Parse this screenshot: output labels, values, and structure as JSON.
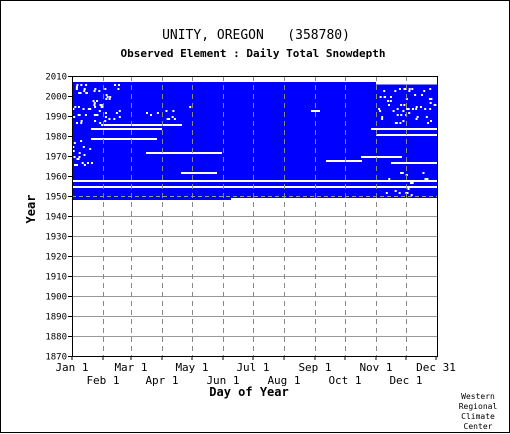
{
  "chart_data": {
    "type": "heatmap",
    "title": "UNITY, OREGON   (358780)",
    "subtitle": "Observed Element : Daily Total Snowdepth",
    "xlabel": "Day of Year",
    "ylabel": "Year",
    "credit": [
      "Western",
      "Regional",
      "Climate",
      "Center"
    ],
    "ylim": [
      1870,
      2010
    ],
    "xlim": [
      1,
      366
    ],
    "y_ticks": [
      2010,
      2000,
      1990,
      1980,
      1970,
      1960,
      1950,
      1940,
      1930,
      1920,
      1910,
      1900,
      1890,
      1880,
      1870
    ],
    "x_ticks_top": [
      {
        "label": "Jan 1",
        "day": 1
      },
      {
        "label": "Mar 1",
        "day": 60
      },
      {
        "label": "May 1",
        "day": 121
      },
      {
        "label": "Jul 1",
        "day": 182
      },
      {
        "label": "Sep 1",
        "day": 244
      },
      {
        "label": "Nov 1",
        "day": 305
      },
      {
        "label": "Dec 31",
        "day": 365
      }
    ],
    "x_ticks_bottom": [
      {
        "label": "Feb 1",
        "day": 32
      },
      {
        "label": "Apr 1",
        "day": 91
      },
      {
        "label": "Jun 1",
        "day": 152
      },
      {
        "label": "Aug 1",
        "day": 213
      },
      {
        "label": "Oct 1",
        "day": 274
      },
      {
        "label": "Dec 1",
        "day": 335
      }
    ],
    "grid": true,
    "data_color": "#0000ff",
    "coverage": {
      "description_years": [
        1948,
        2006
      ],
      "bands": [
        {
          "year_start": 1948,
          "year_end": 2006,
          "day_start": 1,
          "day_end": 365
        },
        {
          "year_start": 2001,
          "year_end": 2004,
          "day_start": 1,
          "day_end": 365
        }
      ],
      "gaps": [
        {
          "year": 1954,
          "day_start": 1,
          "day_end": 365
        },
        {
          "year": 1957,
          "day_start": 1,
          "day_end": 365
        },
        {
          "year": 1978,
          "day_start": 20,
          "day_end": 85
        },
        {
          "year": 1983,
          "day_start": 20,
          "day_end": 90
        },
        {
          "year": 1985,
          "day_start": 30,
          "day_end": 110
        },
        {
          "year": 1971,
          "day_start": 75,
          "day_end": 150
        },
        {
          "year": 1967,
          "day_start": 255,
          "day_end": 290
        },
        {
          "year": 1961,
          "day_start": 110,
          "day_end": 145
        },
        {
          "year": 1980,
          "day_start": 305,
          "day_end": 365
        },
        {
          "year": 1983,
          "day_start": 300,
          "day_end": 365
        },
        {
          "year": 1969,
          "day_start": 290,
          "day_end": 330
        },
        {
          "year": 1966,
          "day_start": 320,
          "day_end": 365
        },
        {
          "year": 1992,
          "day_start": 240,
          "day_end": 248
        }
      ],
      "start_trim": [
        {
          "year": 1948,
          "day_start": 160,
          "day_end": 365
        },
        {
          "year": 2006,
          "day_start": 305,
          "day_end": 365
        }
      ]
    }
  }
}
